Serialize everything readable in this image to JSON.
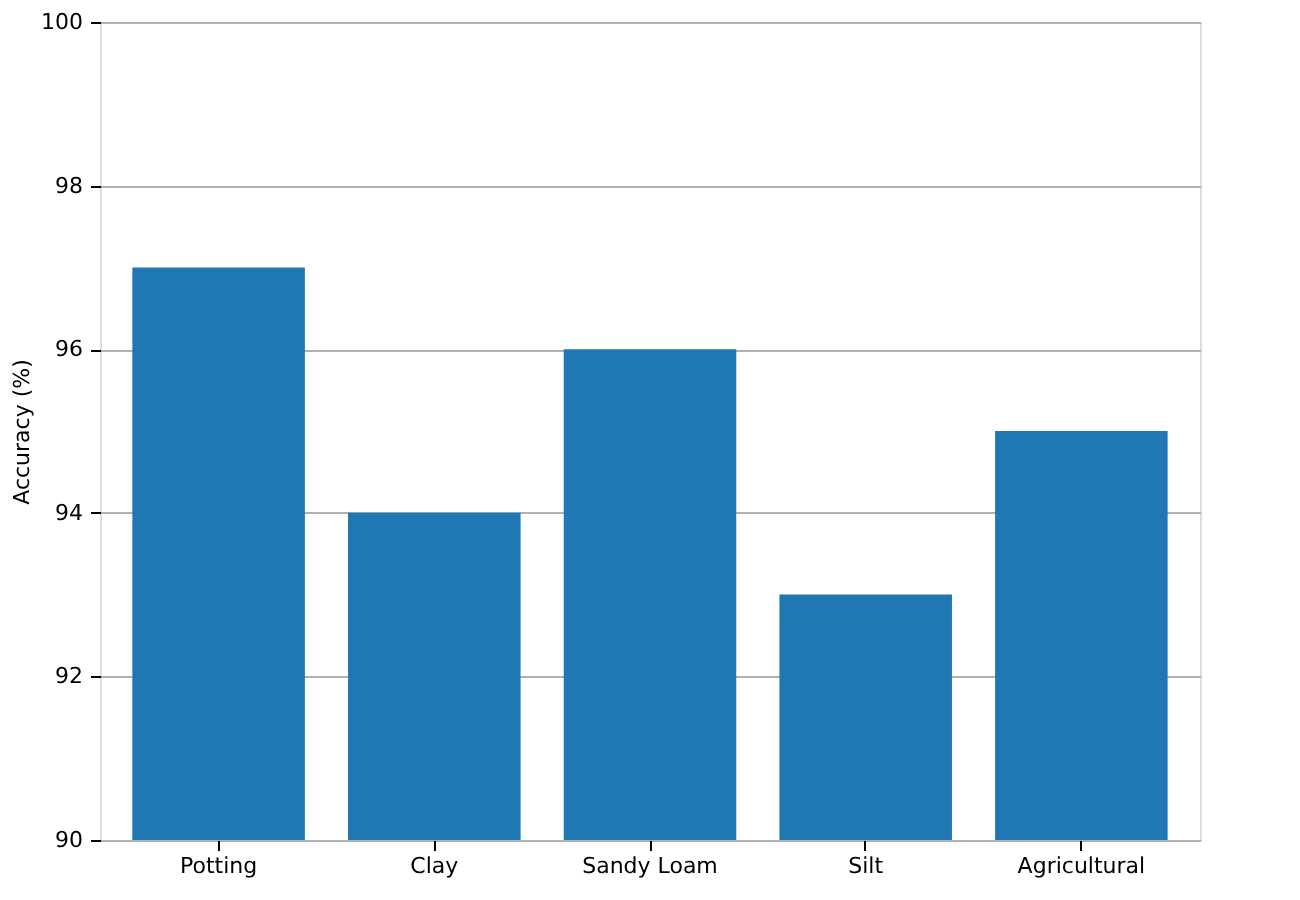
{
  "chart_data": {
    "type": "bar",
    "ylabel": "Accuracy (%)",
    "categories": [
      "Potting",
      "Clay",
      "Sandy Loam",
      "Silt",
      "Agricultural"
    ],
    "values": [
      97,
      94,
      96,
      93,
      95
    ],
    "color": "#1f77b4",
    "ylim": [
      90,
      100
    ],
    "yticks": [
      90,
      92,
      94,
      96,
      98,
      100
    ],
    "grid": "y"
  }
}
